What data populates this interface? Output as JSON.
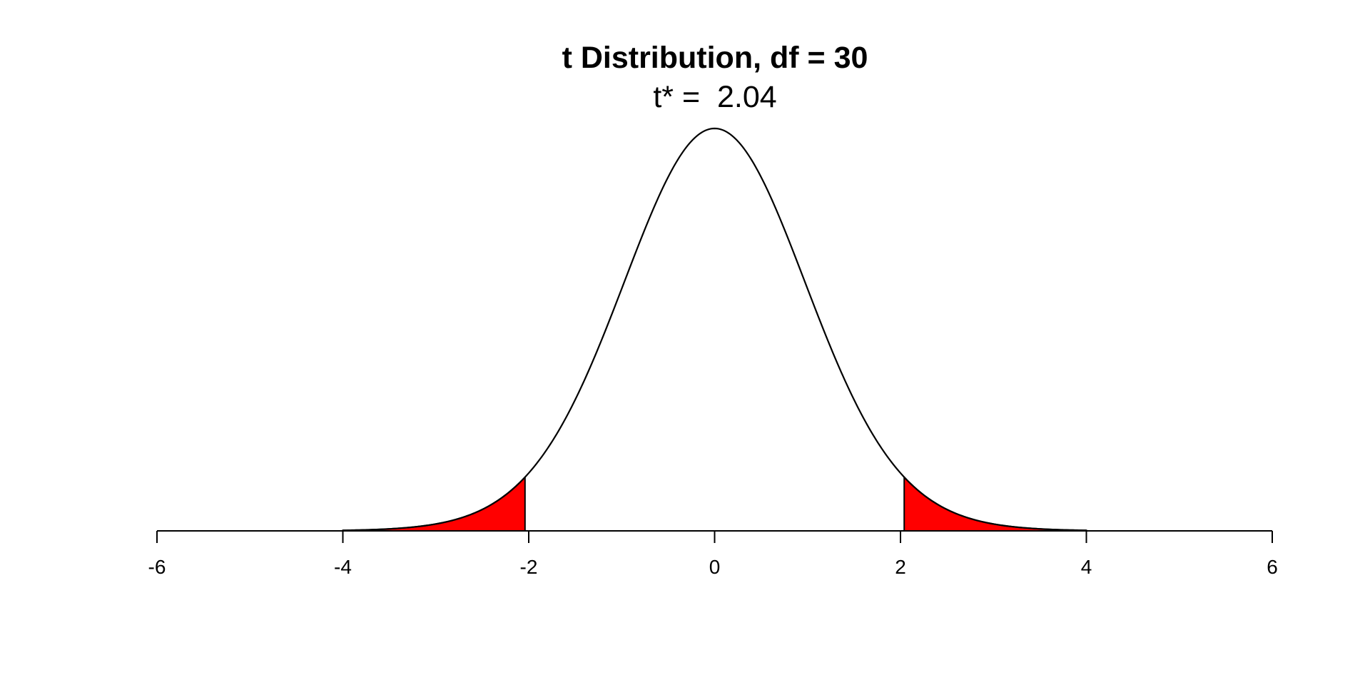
{
  "chart_data": {
    "type": "area",
    "title": "t Distribution, df = 30",
    "subtitle": "t* =  2.04",
    "df": 30,
    "critical_value": 2.04,
    "xlim": [
      -6,
      6
    ],
    "x_ticks": [
      -6,
      -4,
      -2,
      0,
      2,
      4,
      6
    ],
    "x_tick_labels": [
      "-6",
      "-4",
      "-2",
      "0",
      "2",
      "4",
      "6"
    ],
    "curve_range": [
      -4,
      4
    ],
    "shaded_regions": [
      {
        "from": -4,
        "to": -2.04
      },
      {
        "from": 2.04,
        "to": 4
      }
    ],
    "grid": false,
    "colors": {
      "curve": "#000000",
      "shade": "#ff0000",
      "axis": "#000000"
    }
  }
}
